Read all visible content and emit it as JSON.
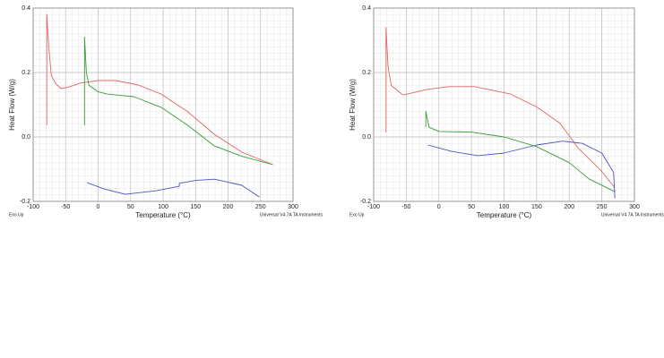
{
  "chart_data": [
    {
      "type": "line",
      "xlabel": "Temperature (°C)",
      "ylabel": "Heat Flow (W/g)",
      "corner_left": "Exo Up",
      "corner_right": "Universal V4.7A TA Instruments",
      "xlim": [
        -100,
        300
      ],
      "xticks": [
        -100,
        -50,
        0,
        50,
        100,
        150,
        200,
        250,
        300
      ],
      "ylim": [
        -0.2,
        0.4
      ],
      "yticks": [
        -0.2,
        {
          "value": 0,
          "label": "0.0"
        },
        0.2,
        0.4
      ],
      "grid": true,
      "series": [
        {
          "color": "#e06666",
          "x": [
            -79,
            -79,
            -76,
            -72,
            -65,
            -57,
            -45,
            -28,
            0,
            27,
            62,
            97,
            138,
            179,
            221,
            269
          ],
          "values": [
            0.036,
            0.38,
            0.28,
            0.19,
            0.165,
            0.15,
            0.155,
            0.167,
            0.175,
            0.175,
            0.161,
            0.133,
            0.078,
            0.008,
            -0.047,
            -0.086
          ]
        },
        {
          "color": "#3a9a3a",
          "x": [
            -21,
            -21,
            -18,
            -14,
            0,
            14,
            55,
            97,
            138,
            179,
            221,
            269
          ],
          "values": [
            0.036,
            0.31,
            0.2,
            0.16,
            0.14,
            0.133,
            0.125,
            0.092,
            0.036,
            -0.028,
            -0.06,
            -0.086
          ]
        },
        {
          "color": "#4a55c0",
          "x": [
            -17,
            10,
            42,
            90,
            125,
            125,
            150,
            179,
            221,
            248
          ],
          "values": [
            -0.142,
            -0.162,
            -0.178,
            -0.167,
            -0.153,
            -0.144,
            -0.135,
            -0.131,
            -0.15,
            -0.186
          ]
        }
      ]
    },
    {
      "type": "line",
      "xlabel": "Temperature (°C)",
      "ylabel": "Heat Flow (W/g)",
      "corner_left": "Exo Up",
      "corner_right": "Universal V4.7A TA Instruments",
      "xlim": [
        -100,
        300
      ],
      "xticks": [
        -100,
        -50,
        0,
        50,
        100,
        150,
        200,
        250,
        300
      ],
      "ylim": [
        -0.2,
        0.4
      ],
      "yticks": [
        -0.2,
        {
          "value": 0,
          "label": "0.0"
        },
        0.2,
        0.4
      ],
      "grid": true,
      "series": [
        {
          "color": "#e06666",
          "x": [
            -81,
            -81,
            -78,
            -73,
            -55,
            -19,
            15,
            55,
            110,
            151,
            186,
            213,
            248,
            270
          ],
          "values": [
            0.014,
            0.34,
            0.22,
            0.16,
            0.13,
            0.147,
            0.156,
            0.156,
            0.133,
            0.092,
            0.042,
            -0.033,
            -0.103,
            -0.158
          ]
        },
        {
          "color": "#3a9a3a",
          "x": [
            -20,
            -20,
            -15,
            0,
            50,
            100,
            150,
            200,
            230,
            270
          ],
          "values": [
            0.03,
            0.08,
            0.03,
            0.017,
            0.015,
            0.0,
            -0.03,
            -0.08,
            -0.13,
            -0.17
          ]
        },
        {
          "color": "#4a55c0",
          "x": [
            -17,
            20,
            60,
            100,
            150,
            190,
            220,
            250,
            268,
            270
          ],
          "values": [
            -0.025,
            -0.045,
            -0.058,
            -0.05,
            -0.025,
            -0.013,
            -0.02,
            -0.05,
            -0.11,
            -0.19
          ]
        }
      ]
    }
  ]
}
